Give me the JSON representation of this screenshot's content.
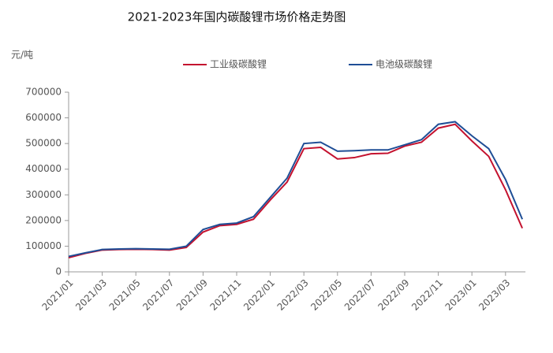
{
  "chart_data": {
    "type": "line",
    "title": "2021-2023年国内碳酸锂市场价格走势图",
    "y_label": "元/吨",
    "categories": [
      "2021/01",
      null,
      "2021/03",
      null,
      "2021/05",
      null,
      "2021/07",
      null,
      "2021/09",
      null,
      "2021/11",
      null,
      "2022/01",
      null,
      "2022/03",
      null,
      "2022/05",
      null,
      "2022/07",
      null,
      "2022/09",
      null,
      "2022/11",
      null,
      "2023/01",
      null,
      "2023/03",
      null
    ],
    "series": [
      {
        "name": "工业级碳酸锂",
        "color": "#c4122f",
        "values": [
          55000,
          72000,
          85000,
          87000,
          88000,
          87000,
          85000,
          95000,
          155000,
          180000,
          185000,
          205000,
          280000,
          350000,
          480000,
          485000,
          440000,
          445000,
          460000,
          462000,
          490000,
          505000,
          560000,
          575000,
          510000,
          450000,
          320000,
          170000
        ]
      },
      {
        "name": "电池级碳酸锂",
        "color": "#1f4e96",
        "values": [
          60000,
          74000,
          87000,
          89000,
          90000,
          89000,
          88000,
          100000,
          165000,
          185000,
          190000,
          215000,
          290000,
          365000,
          500000,
          505000,
          470000,
          472000,
          475000,
          475000,
          495000,
          515000,
          575000,
          585000,
          530000,
          480000,
          360000,
          205000
        ]
      }
    ],
    "ylim": [
      0,
      700000
    ],
    "yticks": [
      0,
      100000,
      200000,
      300000,
      400000,
      500000,
      600000,
      700000
    ]
  }
}
